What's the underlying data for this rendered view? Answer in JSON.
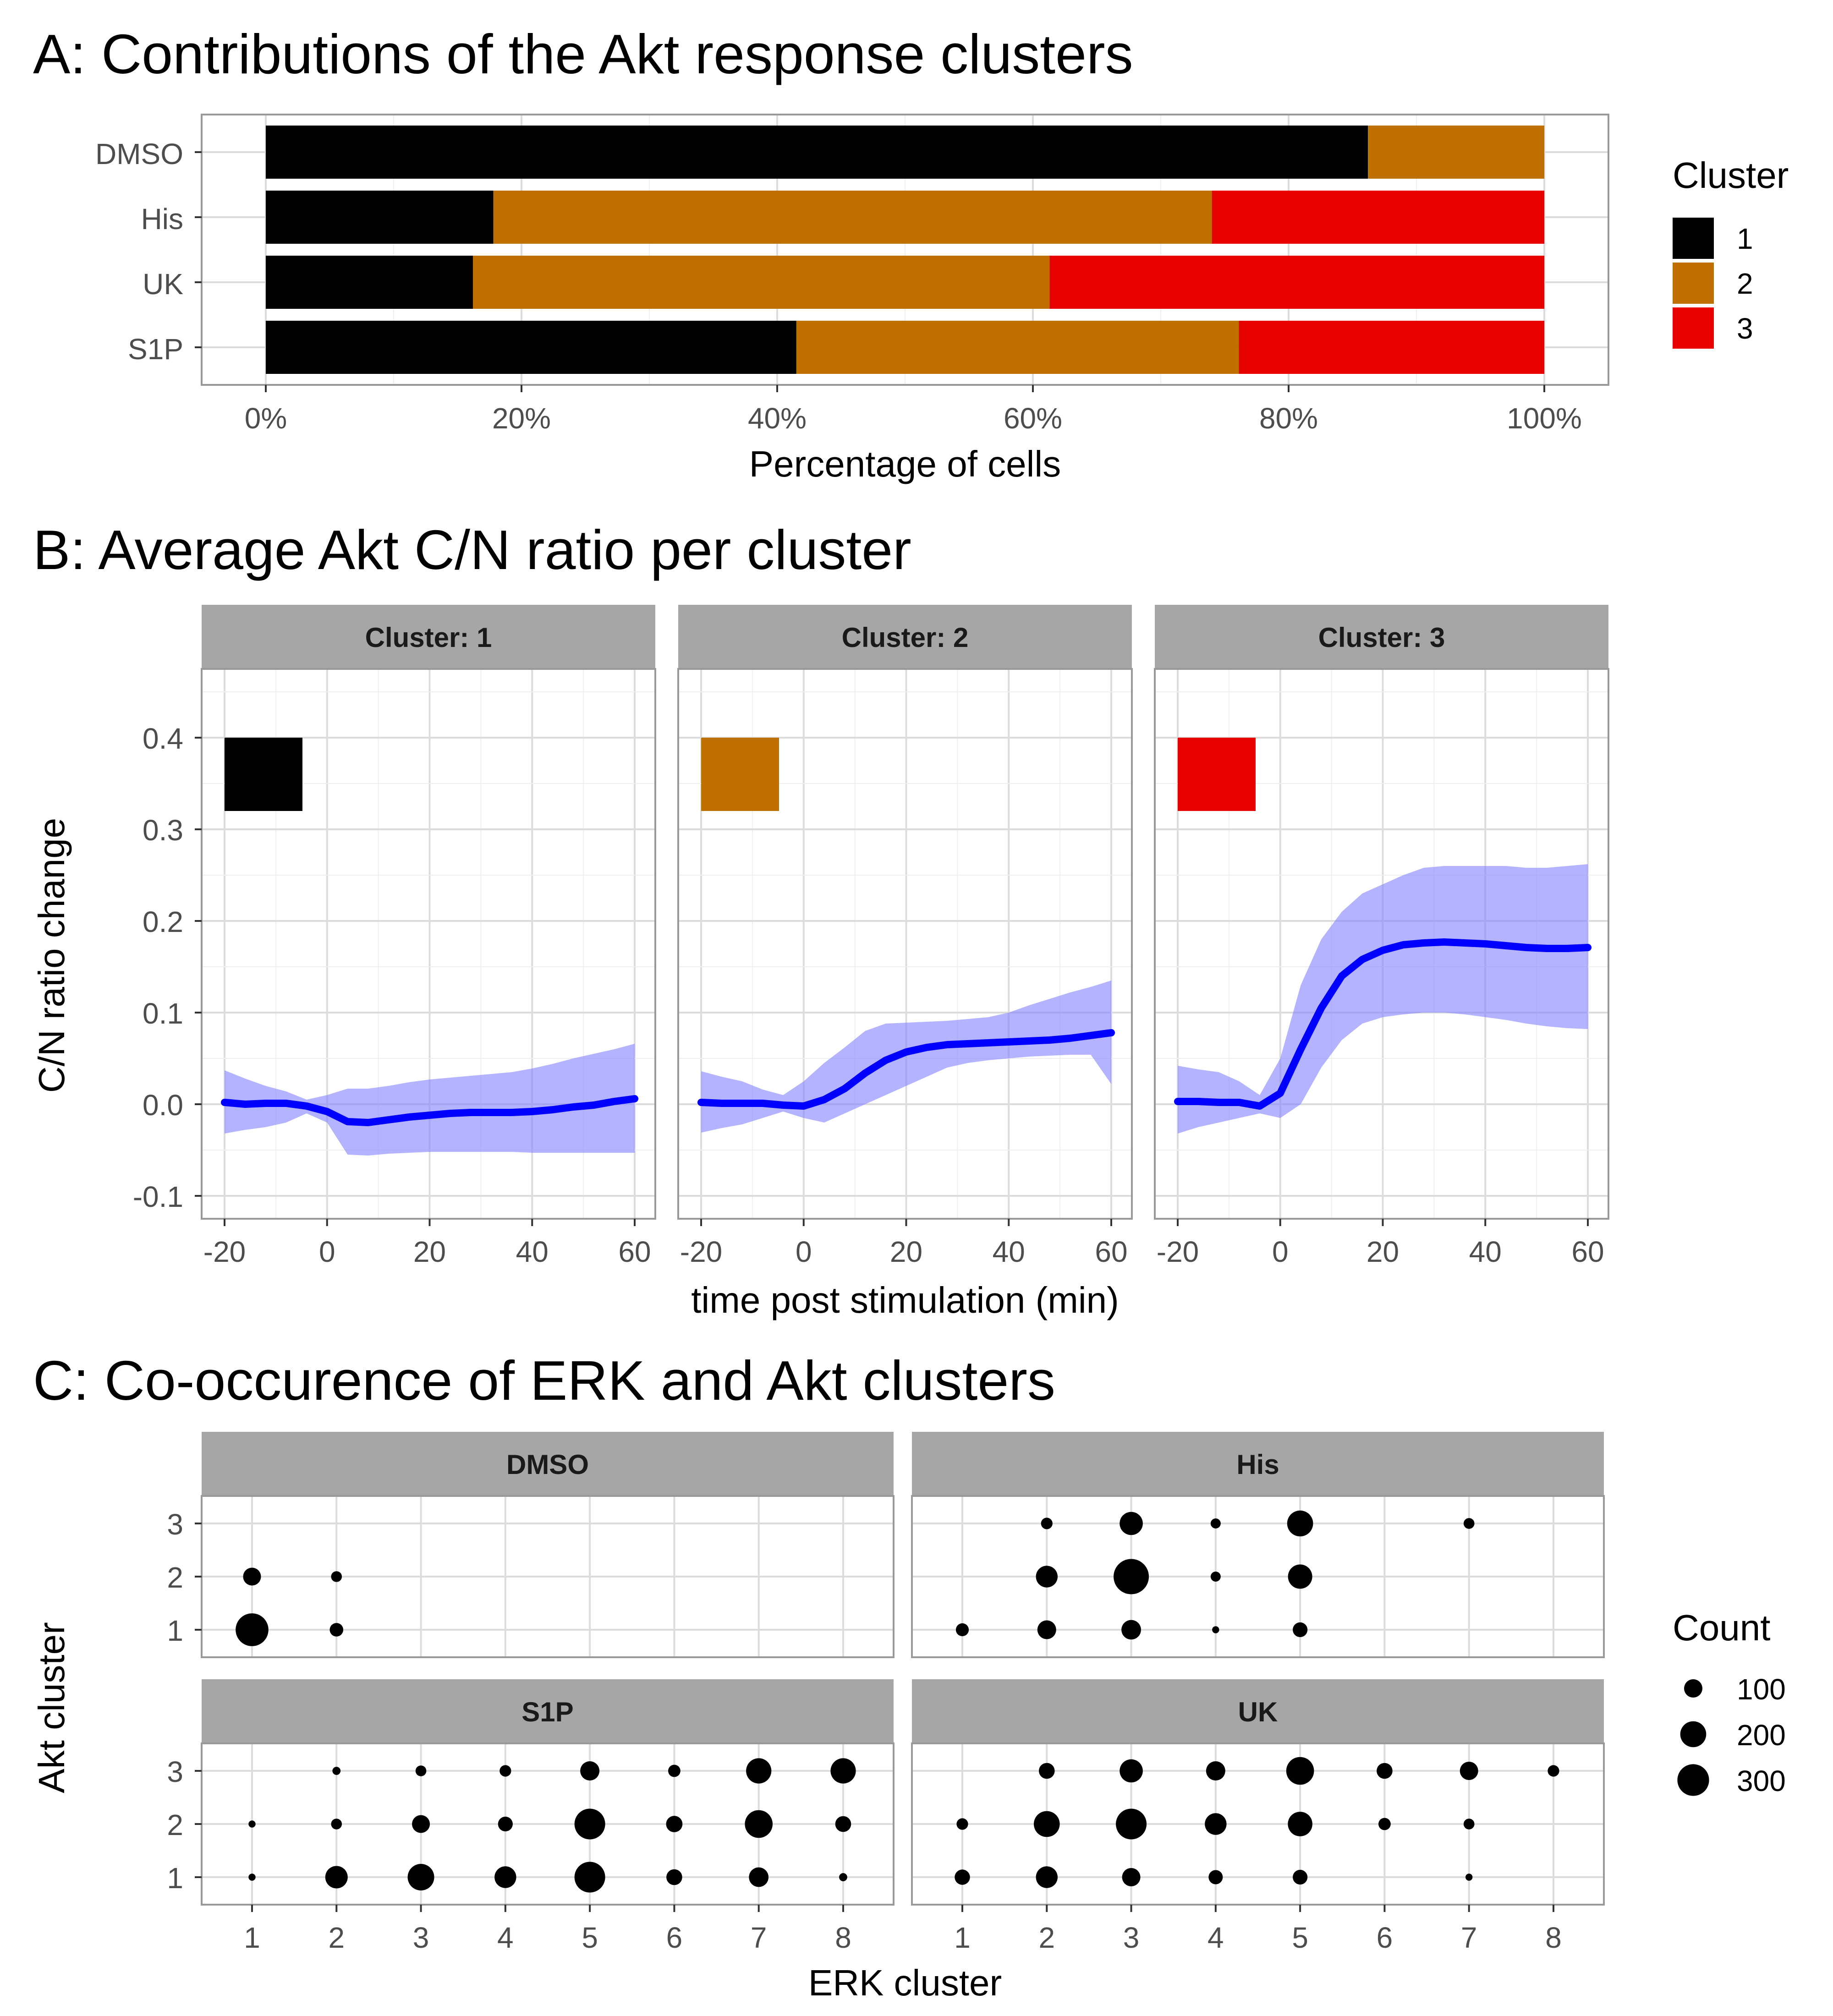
{
  "chart_data": [
    {
      "type": "bar",
      "stacked": true,
      "orientation": "horizontal",
      "title": "A:  Contributions of the Akt response clusters",
      "xlabel": "Percentage of cells",
      "ylabel": "",
      "categories": [
        "DMSO",
        "His",
        "UK",
        "S1P"
      ],
      "series": [
        {
          "name": "1",
          "values": [
            86.2,
            17.8,
            16.2,
            41.5
          ]
        },
        {
          "name": "2",
          "values": [
            13.8,
            56.2,
            45.1,
            34.6
          ]
        },
        {
          "name": "3",
          "values": [
            0.0,
            26.0,
            38.7,
            23.9
          ]
        }
      ],
      "xlim": [
        0,
        100
      ],
      "xticks": [
        "0%",
        "20%",
        "40%",
        "60%",
        "80%",
        "100%"
      ],
      "legend": {
        "title": "Cluster",
        "position": "right",
        "entries": [
          "1",
          "2",
          "3"
        ]
      },
      "colors": {
        "1": "#000000",
        "2": "#C07000",
        "3": "#E60000"
      }
    },
    {
      "type": "line",
      "title": "B:  Average Akt C/N ratio per cluster",
      "xlabel": "time post stimulation (min)",
      "ylabel": "C/N ratio change",
      "xlim": [
        -20,
        60
      ],
      "ylim": [
        -0.1,
        0.4
      ],
      "xticks": [
        "-20",
        "0",
        "20",
        "40",
        "60"
      ],
      "yticks": [
        "-0.1",
        "0.0",
        "0.1",
        "0.2",
        "0.3",
        "0.4"
      ],
      "x": [
        -20,
        -16,
        -12,
        -8,
        -4,
        0,
        4,
        8,
        12,
        16,
        20,
        24,
        28,
        32,
        36,
        40,
        44,
        48,
        52,
        56,
        60
      ],
      "line_color": "#0000FF",
      "band_color": "#8080FF",
      "panels": [
        {
          "strip": "Cluster: 1",
          "color": "#000000",
          "mean": [
            0.002,
            0.0,
            0.001,
            0.001,
            -0.002,
            -0.008,
            -0.019,
            -0.02,
            -0.017,
            -0.014,
            -0.012,
            -0.01,
            -0.009,
            -0.009,
            -0.009,
            -0.008,
            -0.006,
            -0.003,
            -0.001,
            0.003,
            0.006
          ],
          "lower": [
            -0.032,
            -0.028,
            -0.025,
            -0.02,
            -0.01,
            -0.02,
            -0.055,
            -0.056,
            -0.054,
            -0.053,
            -0.052,
            -0.052,
            -0.052,
            -0.052,
            -0.052,
            -0.053,
            -0.053,
            -0.053,
            -0.053,
            -0.053,
            -0.053
          ],
          "upper": [
            0.037,
            0.028,
            0.02,
            0.014,
            0.005,
            0.01,
            0.017,
            0.017,
            0.02,
            0.024,
            0.027,
            0.029,
            0.031,
            0.033,
            0.035,
            0.039,
            0.044,
            0.05,
            0.055,
            0.06,
            0.066
          ]
        },
        {
          "strip": "Cluster: 2",
          "color": "#C07000",
          "mean": [
            0.002,
            0.001,
            0.001,
            0.001,
            -0.001,
            -0.002,
            0.005,
            0.017,
            0.034,
            0.048,
            0.057,
            0.062,
            0.065,
            0.066,
            0.067,
            0.068,
            0.069,
            0.07,
            0.072,
            0.075,
            0.078
          ],
          "lower": [
            -0.031,
            -0.026,
            -0.022,
            -0.015,
            -0.008,
            -0.015,
            -0.02,
            -0.01,
            0.0,
            0.01,
            0.02,
            0.03,
            0.04,
            0.045,
            0.048,
            0.05,
            0.052,
            0.053,
            0.054,
            0.054,
            0.022
          ],
          "upper": [
            0.036,
            0.03,
            0.025,
            0.016,
            0.01,
            0.025,
            0.045,
            0.062,
            0.08,
            0.088,
            0.089,
            0.09,
            0.091,
            0.093,
            0.095,
            0.1,
            0.108,
            0.115,
            0.122,
            0.128,
            0.135
          ]
        },
        {
          "strip": "Cluster: 3",
          "color": "#E60000",
          "mean": [
            0.003,
            0.003,
            0.002,
            0.002,
            -0.002,
            0.012,
            0.06,
            0.105,
            0.14,
            0.158,
            0.168,
            0.174,
            0.176,
            0.177,
            0.176,
            0.175,
            0.173,
            0.171,
            0.17,
            0.17,
            0.171
          ],
          "lower": [
            -0.032,
            -0.025,
            -0.02,
            -0.015,
            -0.01,
            -0.015,
            0.0,
            0.04,
            0.07,
            0.088,
            0.095,
            0.098,
            0.1,
            0.1,
            0.098,
            0.095,
            0.092,
            0.088,
            0.085,
            0.083,
            0.082
          ],
          "upper": [
            0.042,
            0.038,
            0.035,
            0.025,
            0.01,
            0.05,
            0.13,
            0.18,
            0.21,
            0.23,
            0.24,
            0.25,
            0.258,
            0.26,
            0.26,
            0.26,
            0.26,
            0.258,
            0.258,
            0.26,
            0.262
          ]
        }
      ]
    },
    {
      "type": "scatter",
      "subtype": "bubble",
      "title": "C: Co-occurence of ERK and Akt clusters",
      "xlabel": "ERK cluster",
      "ylabel": "Akt cluster",
      "xticks": [
        "1",
        "2",
        "3",
        "4",
        "5",
        "6",
        "7",
        "8"
      ],
      "yticks": [
        "1",
        "2",
        "3"
      ],
      "legend": {
        "title": "Count",
        "position": "right",
        "entries": [
          100,
          200,
          300
        ],
        "labels": [
          "100",
          "200",
          "300"
        ]
      },
      "panels": [
        {
          "strip": "DMSO",
          "points": [
            {
              "erk": 1,
              "akt": 1,
              "count": 320
            },
            {
              "erk": 1,
              "akt": 2,
              "count": 95
            },
            {
              "erk": 2,
              "akt": 1,
              "count": 55
            },
            {
              "erk": 2,
              "akt": 2,
              "count": 35
            }
          ]
        },
        {
          "strip": "His",
          "points": [
            {
              "erk": 1,
              "akt": 1,
              "count": 50
            },
            {
              "erk": 2,
              "akt": 1,
              "count": 105
            },
            {
              "erk": 2,
              "akt": 2,
              "count": 140
            },
            {
              "erk": 2,
              "akt": 3,
              "count": 40
            },
            {
              "erk": 3,
              "akt": 1,
              "count": 115
            },
            {
              "erk": 3,
              "akt": 2,
              "count": 370
            },
            {
              "erk": 3,
              "akt": 3,
              "count": 160
            },
            {
              "erk": 4,
              "akt": 1,
              "count": 15
            },
            {
              "erk": 4,
              "akt": 2,
              "count": 30
            },
            {
              "erk": 4,
              "akt": 3,
              "count": 30
            },
            {
              "erk": 5,
              "akt": 1,
              "count": 65
            },
            {
              "erk": 5,
              "akt": 2,
              "count": 175
            },
            {
              "erk": 5,
              "akt": 3,
              "count": 200
            },
            {
              "erk": 7,
              "akt": 3,
              "count": 35
            }
          ]
        },
        {
          "strip": "S1P",
          "points": [
            {
              "erk": 1,
              "akt": 1,
              "count": 15
            },
            {
              "erk": 1,
              "akt": 2,
              "count": 15
            },
            {
              "erk": 2,
              "akt": 1,
              "count": 150
            },
            {
              "erk": 2,
              "akt": 2,
              "count": 35
            },
            {
              "erk": 2,
              "akt": 3,
              "count": 20
            },
            {
              "erk": 3,
              "akt": 1,
              "count": 210
            },
            {
              "erk": 3,
              "akt": 2,
              "count": 95
            },
            {
              "erk": 3,
              "akt": 3,
              "count": 35
            },
            {
              "erk": 4,
              "akt": 1,
              "count": 140
            },
            {
              "erk": 4,
              "akt": 2,
              "count": 65
            },
            {
              "erk": 4,
              "akt": 3,
              "count": 40
            },
            {
              "erk": 5,
              "akt": 1,
              "count": 280
            },
            {
              "erk": 5,
              "akt": 2,
              "count": 280
            },
            {
              "erk": 5,
              "akt": 3,
              "count": 110
            },
            {
              "erk": 6,
              "akt": 1,
              "count": 75
            },
            {
              "erk": 6,
              "akt": 2,
              "count": 80
            },
            {
              "erk": 6,
              "akt": 3,
              "count": 45
            },
            {
              "erk": 7,
              "akt": 1,
              "count": 115
            },
            {
              "erk": 7,
              "akt": 2,
              "count": 230
            },
            {
              "erk": 7,
              "akt": 3,
              "count": 190
            },
            {
              "erk": 8,
              "akt": 1,
              "count": 20
            },
            {
              "erk": 8,
              "akt": 2,
              "count": 75
            },
            {
              "erk": 8,
              "akt": 3,
              "count": 190
            }
          ]
        },
        {
          "strip": "UK",
          "points": [
            {
              "erk": 1,
              "akt": 1,
              "count": 70
            },
            {
              "erk": 1,
              "akt": 2,
              "count": 40
            },
            {
              "erk": 2,
              "akt": 1,
              "count": 140
            },
            {
              "erk": 2,
              "akt": 2,
              "count": 200
            },
            {
              "erk": 2,
              "akt": 3,
              "count": 75
            },
            {
              "erk": 3,
              "akt": 1,
              "count": 100
            },
            {
              "erk": 3,
              "akt": 2,
              "count": 280
            },
            {
              "erk": 3,
              "akt": 3,
              "count": 160
            },
            {
              "erk": 4,
              "akt": 1,
              "count": 60
            },
            {
              "erk": 4,
              "akt": 2,
              "count": 140
            },
            {
              "erk": 4,
              "akt": 3,
              "count": 110
            },
            {
              "erk": 5,
              "akt": 1,
              "count": 65
            },
            {
              "erk": 5,
              "akt": 2,
              "count": 180
            },
            {
              "erk": 5,
              "akt": 3,
              "count": 230
            },
            {
              "erk": 6,
              "akt": 2,
              "count": 45
            },
            {
              "erk": 6,
              "akt": 3,
              "count": 75
            },
            {
              "erk": 7,
              "akt": 1,
              "count": 15
            },
            {
              "erk": 7,
              "akt": 2,
              "count": 35
            },
            {
              "erk": 7,
              "akt": 3,
              "count": 100
            },
            {
              "erk": 8,
              "akt": 3,
              "count": 40
            }
          ]
        }
      ]
    }
  ]
}
